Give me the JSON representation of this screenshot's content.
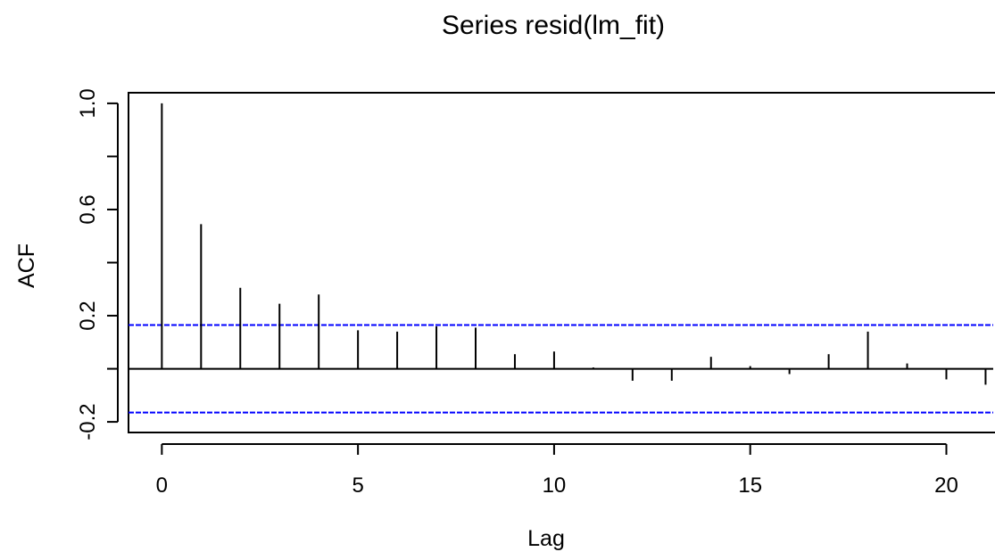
{
  "chart_data": {
    "type": "bar",
    "subtype": "acf-lollipop",
    "title": "Series  resid(lm_fit)",
    "xlabel": "Lag",
    "ylabel": "ACF",
    "x": [
      0,
      1,
      2,
      3,
      4,
      5,
      6,
      7,
      8,
      9,
      10,
      11,
      12,
      13,
      14,
      15,
      16,
      17,
      18,
      19,
      20,
      21
    ],
    "values": [
      1.0,
      0.545,
      0.305,
      0.245,
      0.28,
      0.145,
      0.14,
      0.16,
      0.155,
      0.055,
      0.065,
      0.005,
      -0.045,
      -0.045,
      0.045,
      0.01,
      -0.02,
      0.055,
      0.14,
      0.02,
      -0.04,
      -0.06
    ],
    "confidence_band": [
      0.165,
      -0.165
    ],
    "xlim": [
      -0.85,
      21.9
    ],
    "ylim": [
      -0.24,
      1.04
    ],
    "xticks": [
      0,
      5,
      10,
      15,
      20
    ],
    "xtick_labels": [
      "0",
      "5",
      "10",
      "15",
      "20"
    ],
    "yticks_all": [
      -0.2,
      0.0,
      0.2,
      0.4,
      0.6,
      0.8,
      1.0
    ],
    "yticks_labeled": [
      -0.2,
      0.2,
      0.6,
      1.0
    ],
    "ytick_labels": [
      "-0.2",
      "0.2",
      "0.6",
      "1.0"
    ],
    "grid": false,
    "colors": {
      "bars": "#000000",
      "confidence_band": "#0000ff",
      "zero_line": "#000000"
    }
  }
}
